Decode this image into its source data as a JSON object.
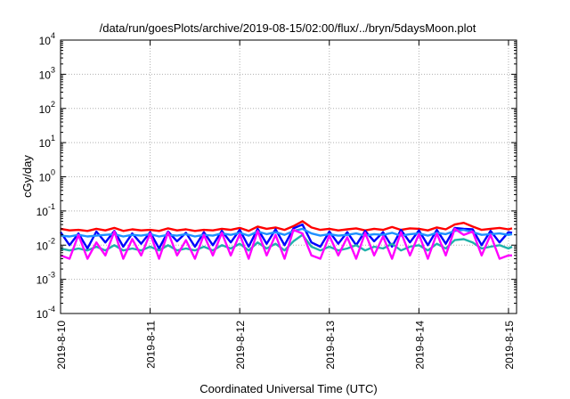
{
  "chart_data": {
    "type": "line",
    "title": "/data/run/goesPlots/archive/2019-08-15/02:00/flux/../bryn/5daysMoon.plot",
    "xlabel": "Coordinated Universal Time (UTC)",
    "ylabel": "cGy/day",
    "yscale": "log",
    "ylim": [
      0.0001,
      10000
    ],
    "xlim": [
      "2019-08-10 00:00",
      "2019-08-15 01:00"
    ],
    "grid": true,
    "legend": "none",
    "y_ticks": [
      {
        "base": "10",
        "exp": "-4",
        "value": 0.0001
      },
      {
        "base": "10",
        "exp": "-3",
        "value": 0.001
      },
      {
        "base": "10",
        "exp": "-2",
        "value": 0.01
      },
      {
        "base": "10",
        "exp": "-1",
        "value": 0.1
      },
      {
        "base": "10",
        "exp": "0",
        "value": 1
      },
      {
        "base": "10",
        "exp": "1",
        "value": 10
      },
      {
        "base": "10",
        "exp": "2",
        "value": 100
      },
      {
        "base": "10",
        "exp": "3",
        "value": 1000
      },
      {
        "base": "10",
        "exp": "4",
        "value": 10000
      }
    ],
    "x_ticks": [
      {
        "label": "2019-8-10",
        "day": 0
      },
      {
        "label": "2019-8-11",
        "day": 1
      },
      {
        "label": "2019-8-12",
        "day": 2
      },
      {
        "label": "2019-8-13",
        "day": 3
      },
      {
        "label": "2019-8-14",
        "day": 4
      },
      {
        "label": "2019-8-15",
        "day": 5
      }
    ],
    "series": [
      {
        "color": "#ff0000",
        "base": 0.026,
        "spike": 1.0,
        "dip": 0.7,
        "x": [
          0,
          0.1,
          0.2,
          0.3,
          0.4,
          0.5,
          0.6,
          0.7,
          0.8,
          0.9,
          1.0,
          1.1,
          1.2,
          1.3,
          1.4,
          1.5,
          1.6,
          1.7,
          1.8,
          1.9,
          2.0,
          2.1,
          2.2,
          2.3,
          2.4,
          2.5,
          2.6,
          2.7,
          2.8,
          2.9,
          3.0,
          3.1,
          3.2,
          3.3,
          3.4,
          3.5,
          3.6,
          3.7,
          3.8,
          3.9,
          4.0,
          4.1,
          4.2,
          4.3,
          4.4,
          4.5,
          4.6,
          4.7,
          4.8,
          4.9,
          5.0,
          5.04
        ],
        "y": [
          0.03,
          0.027,
          0.028,
          0.026,
          0.03,
          0.027,
          0.032,
          0.026,
          0.029,
          0.027,
          0.028,
          0.026,
          0.031,
          0.027,
          0.029,
          0.026,
          0.028,
          0.027,
          0.03,
          0.028,
          0.032,
          0.026,
          0.035,
          0.03,
          0.033,
          0.028,
          0.036,
          0.05,
          0.033,
          0.028,
          0.03,
          0.027,
          0.029,
          0.031,
          0.027,
          0.03,
          0.028,
          0.034,
          0.028,
          0.031,
          0.03,
          0.027,
          0.033,
          0.029,
          0.04,
          0.045,
          0.035,
          0.028,
          0.03,
          0.032,
          0.029,
          0.031
        ]
      },
      {
        "color": "#0000ff",
        "base": 0.022,
        "x": [
          0,
          0.1,
          0.2,
          0.3,
          0.4,
          0.5,
          0.6,
          0.7,
          0.8,
          0.9,
          1.0,
          1.1,
          1.2,
          1.3,
          1.4,
          1.5,
          1.6,
          1.7,
          1.8,
          1.9,
          2.0,
          2.1,
          2.2,
          2.3,
          2.4,
          2.5,
          2.6,
          2.7,
          2.8,
          2.9,
          3.0,
          3.1,
          3.2,
          3.3,
          3.4,
          3.5,
          3.6,
          3.7,
          3.8,
          3.9,
          4.0,
          4.1,
          4.2,
          4.3,
          4.4,
          4.5,
          4.6,
          4.7,
          4.8,
          4.9,
          5.0,
          5.04
        ],
        "y": [
          0.024,
          0.01,
          0.022,
          0.008,
          0.025,
          0.012,
          0.026,
          0.009,
          0.022,
          0.011,
          0.024,
          0.008,
          0.025,
          0.013,
          0.023,
          0.009,
          0.024,
          0.01,
          0.026,
          0.012,
          0.028,
          0.009,
          0.03,
          0.011,
          0.029,
          0.01,
          0.031,
          0.04,
          0.012,
          0.009,
          0.025,
          0.011,
          0.024,
          0.01,
          0.026,
          0.013,
          0.024,
          0.009,
          0.028,
          0.012,
          0.027,
          0.01,
          0.028,
          0.011,
          0.032,
          0.03,
          0.029,
          0.01,
          0.026,
          0.012,
          0.024,
          0.023
        ]
      },
      {
        "color": "#1e90ff",
        "base": 0.02,
        "x": [
          0,
          0.1,
          0.2,
          0.3,
          0.4,
          0.5,
          0.6,
          0.7,
          0.8,
          0.9,
          1.0,
          1.1,
          1.2,
          1.3,
          1.4,
          1.5,
          1.6,
          1.7,
          1.8,
          1.9,
          2.0,
          2.1,
          2.2,
          2.3,
          2.4,
          2.5,
          2.6,
          2.7,
          2.8,
          2.9,
          3.0,
          3.1,
          3.2,
          3.3,
          3.4,
          3.5,
          3.6,
          3.7,
          3.8,
          3.9,
          4.0,
          4.1,
          4.2,
          4.3,
          4.4,
          4.5,
          4.6,
          4.7,
          4.8,
          4.9,
          5.0,
          5.04
        ],
        "y": [
          0.019,
          0.018,
          0.02,
          0.018,
          0.019,
          0.02,
          0.021,
          0.018,
          0.02,
          0.019,
          0.021,
          0.018,
          0.02,
          0.019,
          0.021,
          0.018,
          0.02,
          0.019,
          0.022,
          0.02,
          0.023,
          0.019,
          0.025,
          0.021,
          0.024,
          0.02,
          0.026,
          0.03,
          0.022,
          0.019,
          0.021,
          0.019,
          0.02,
          0.022,
          0.019,
          0.021,
          0.02,
          0.023,
          0.019,
          0.021,
          0.022,
          0.019,
          0.023,
          0.021,
          0.026,
          0.028,
          0.024,
          0.02,
          0.021,
          0.022,
          0.02,
          0.021
        ]
      },
      {
        "color": "#20b2aa",
        "base": 0.008,
        "x": [
          0,
          0.1,
          0.2,
          0.3,
          0.4,
          0.5,
          0.6,
          0.7,
          0.8,
          0.9,
          1.0,
          1.1,
          1.2,
          1.3,
          1.4,
          1.5,
          1.6,
          1.7,
          1.8,
          1.9,
          2.0,
          2.1,
          2.2,
          2.3,
          2.4,
          2.5,
          2.6,
          2.7,
          2.8,
          2.9,
          3.0,
          3.1,
          3.2,
          3.3,
          3.4,
          3.5,
          3.6,
          3.7,
          3.8,
          3.9,
          4.0,
          4.1,
          4.2,
          4.3,
          4.4,
          4.5,
          4.6,
          4.7,
          4.8,
          4.9,
          5.0,
          5.04
        ],
        "y": [
          0.008,
          0.007,
          0.008,
          0.007,
          0.009,
          0.007,
          0.01,
          0.007,
          0.008,
          0.007,
          0.009,
          0.007,
          0.01,
          0.007,
          0.008,
          0.007,
          0.009,
          0.007,
          0.01,
          0.008,
          0.011,
          0.007,
          0.012,
          0.008,
          0.011,
          0.007,
          0.013,
          0.02,
          0.009,
          0.007,
          0.009,
          0.007,
          0.008,
          0.01,
          0.007,
          0.009,
          0.008,
          0.011,
          0.007,
          0.009,
          0.01,
          0.007,
          0.011,
          0.008,
          0.014,
          0.015,
          0.012,
          0.008,
          0.009,
          0.01,
          0.008,
          0.009
        ]
      },
      {
        "color": "#ff00ff",
        "base": 0.005,
        "x": [
          0,
          0.1,
          0.2,
          0.3,
          0.4,
          0.5,
          0.6,
          0.7,
          0.8,
          0.9,
          1.0,
          1.1,
          1.2,
          1.3,
          1.4,
          1.5,
          1.6,
          1.7,
          1.8,
          1.9,
          2.0,
          2.1,
          2.2,
          2.3,
          2.4,
          2.5,
          2.6,
          2.7,
          2.8,
          2.9,
          3.0,
          3.1,
          3.2,
          3.3,
          3.4,
          3.5,
          3.6,
          3.7,
          3.8,
          3.9,
          4.0,
          4.1,
          4.2,
          4.3,
          4.4,
          4.5,
          4.6,
          4.7,
          4.8,
          4.9,
          5.0,
          5.04
        ],
        "y": [
          0.005,
          0.004,
          0.02,
          0.004,
          0.012,
          0.005,
          0.025,
          0.004,
          0.015,
          0.005,
          0.022,
          0.004,
          0.024,
          0.005,
          0.014,
          0.004,
          0.02,
          0.005,
          0.023,
          0.005,
          0.021,
          0.004,
          0.026,
          0.005,
          0.02,
          0.004,
          0.028,
          0.022,
          0.005,
          0.004,
          0.019,
          0.005,
          0.017,
          0.004,
          0.023,
          0.005,
          0.018,
          0.004,
          0.024,
          0.005,
          0.021,
          0.004,
          0.022,
          0.005,
          0.03,
          0.02,
          0.025,
          0.005,
          0.02,
          0.004,
          0.005,
          0.005
        ]
      }
    ]
  }
}
